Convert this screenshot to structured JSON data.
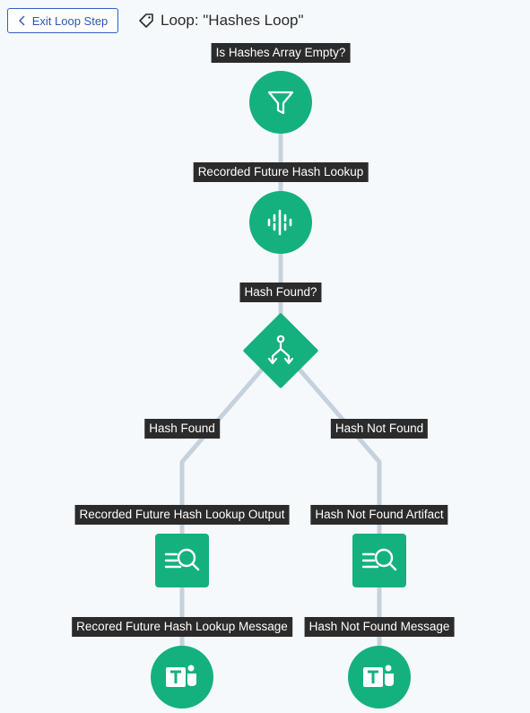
{
  "toolbar": {
    "exit_label": "Exit Loop Step",
    "loop_title": "Loop: \"Hashes Loop\""
  },
  "flow": {
    "steps": {
      "filter": "Is Hashes Array Empty?",
      "lookup": "Recorded Future Hash Lookup",
      "decision": "Hash Found?",
      "branch_found": "Hash Found",
      "branch_not_found": "Hash Not Found",
      "output_found": "Recorded Future Hash Lookup Output",
      "output_not_found": "Hash Not Found Artifact",
      "message_found": "Recored Future Hash Lookup Message",
      "message_not_found": "Hash Not Found Message"
    },
    "icons": {
      "filter": "funnel-icon",
      "lookup": "recorded-future-icon",
      "decision": "branch-icon",
      "output": "search-list-icon",
      "message": "teams-icon"
    }
  },
  "colors": {
    "node": "#14b17e",
    "edge": "#c5d2dd",
    "label_bg": "#2b2b2b",
    "accent": "#2a55b8",
    "background": "#f6f9fc"
  }
}
